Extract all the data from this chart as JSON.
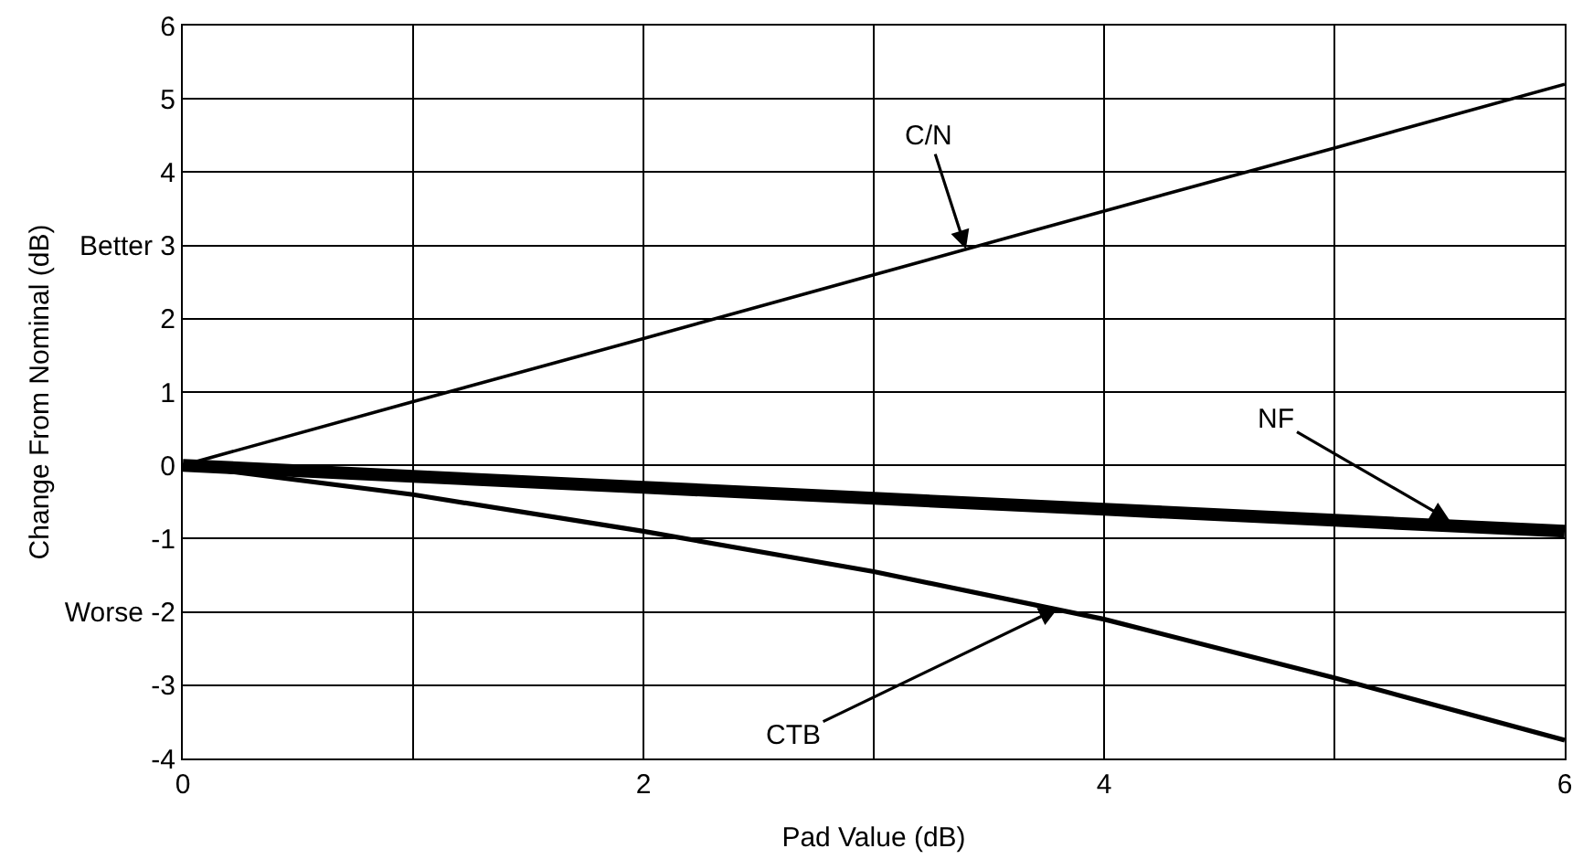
{
  "chart_data": {
    "type": "line",
    "xlabel": "Pad Value (dB)",
    "ylabel": "Change From Nominal (dB)",
    "x": [
      0,
      1,
      2,
      3,
      4,
      5,
      6
    ],
    "series": [
      {
        "color": "#000000",
        "values": [
          0,
          0.87,
          1.73,
          2.6,
          3.47,
          4.33,
          5.2
        ]
      },
      {
        "color": "#000000",
        "values": [
          0,
          -0.15,
          -0.3,
          -0.45,
          -0.6,
          -0.75,
          -0.9
        ]
      },
      {
        "color": "#000000",
        "values": [
          0,
          -0.4,
          -0.9,
          -1.45,
          -2.1,
          -2.9,
          -3.75
        ]
      }
    ],
    "xlim": [
      0,
      6
    ],
    "xticks": [
      0,
      {
        "value": 1,
        "label": null
      },
      2,
      {
        "value": 3,
        "label": null
      },
      4,
      {
        "value": 5,
        "label": null
      },
      6
    ],
    "ylim": [
      -4,
      6
    ],
    "yticks": [
      -4,
      -3,
      {
        "value": -2,
        "label": "Worse -2"
      },
      -1,
      0,
      1,
      2,
      {
        "value": 3,
        "label": "Better 3"
      },
      4,
      5,
      6
    ],
    "grid": true,
    "marker": "none",
    "line_style": "solid",
    "annotations": [
      {
        "text": "C/N",
        "x": 3.4,
        "y": 2.95
      },
      {
        "text": "NF",
        "x": 5.5,
        "y": -0.75
      },
      {
        "text": "CTB",
        "x": 3.8,
        "y": -1.95
      }
    ]
  }
}
